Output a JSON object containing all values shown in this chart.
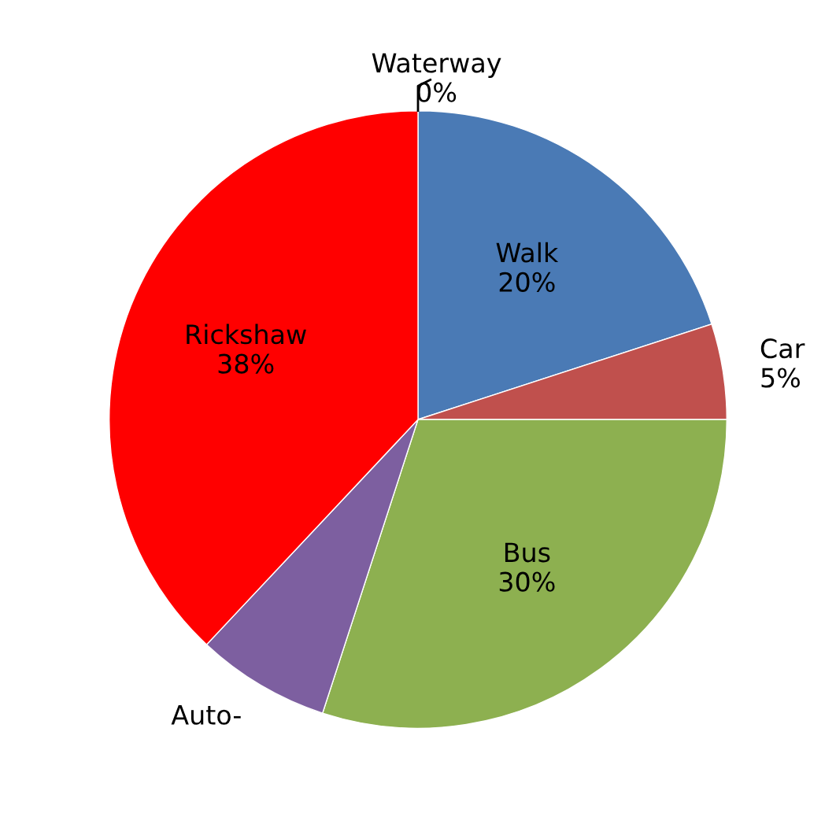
{
  "chart_data": {
    "type": "pie",
    "categories": [
      "Waterway",
      "Walk",
      "Car",
      "Bus",
      "Auto-",
      "Rickshaw"
    ],
    "values": [
      0,
      20,
      5,
      30,
      7,
      38
    ],
    "value_labels": [
      "0%",
      "20%",
      "5%",
      "30%",
      null,
      "38%"
    ],
    "colors": [
      "#4bacc6",
      "#4a7ab5",
      "#c0504d",
      "#8db050",
      "#7d5fa0",
      "#ff0000"
    ]
  }
}
